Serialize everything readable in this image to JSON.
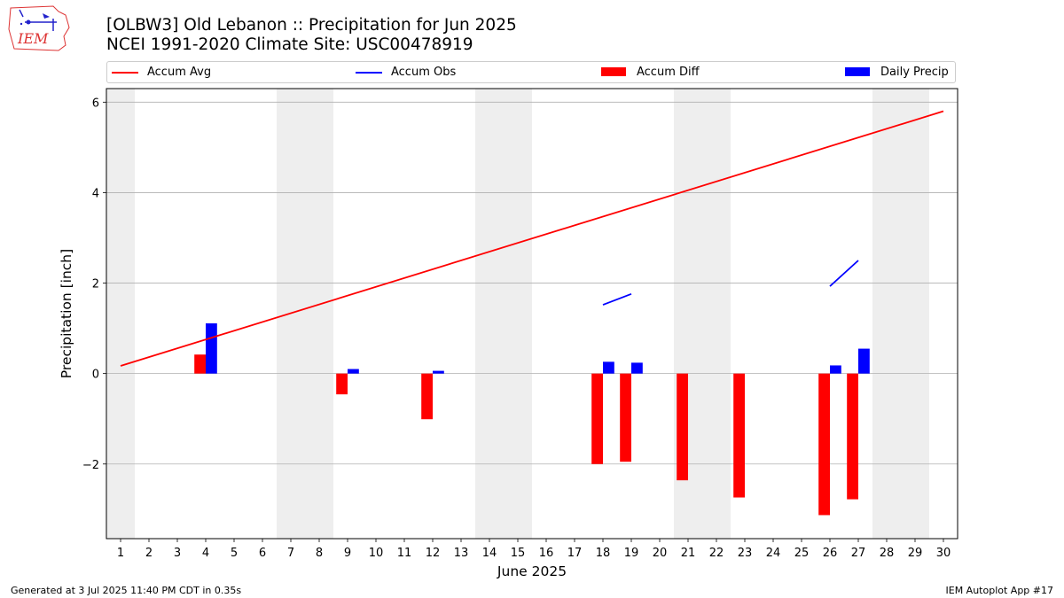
{
  "header": {
    "title_line1": "[OLBW3] Old Lebanon :: Precipitation for Jun 2025",
    "title_line2": "NCEI 1991-2020 Climate Site: USC00478919",
    "logo_text": "IEM"
  },
  "legend": {
    "items": [
      {
        "label": "Accum Avg",
        "kind": "line",
        "color": "#ff0000"
      },
      {
        "label": "Accum Obs",
        "kind": "line",
        "color": "#0000ff"
      },
      {
        "label": "Accum Diff",
        "kind": "bar",
        "color": "#ff0000"
      },
      {
        "label": "Daily Precip",
        "kind": "bar",
        "color": "#0000ff"
      }
    ]
  },
  "footer": {
    "generated": "Generated at 3 Jul 2025 11:40 PM CDT in 0.35s",
    "app": "IEM Autoplot App #17"
  },
  "chart_data": {
    "type": "bar",
    "xlabel": "June 2025",
    "ylabel": "Precipitation [inch]",
    "xlim": [
      0.5,
      30.5
    ],
    "ylim": [
      -3.65,
      6.3
    ],
    "x_ticks": [
      1,
      2,
      3,
      4,
      5,
      6,
      7,
      8,
      9,
      10,
      11,
      12,
      13,
      14,
      15,
      16,
      17,
      18,
      19,
      20,
      21,
      22,
      23,
      24,
      25,
      26,
      27,
      28,
      29,
      30
    ],
    "y_ticks": [
      -2,
      0,
      2,
      4,
      6
    ],
    "y_tick_labels": [
      "−2",
      "0",
      "2",
      "4",
      "6"
    ],
    "grid": "horizontal",
    "legend_position": "top",
    "weekend_shading": [
      [
        0.5,
        1.5
      ],
      [
        6.5,
        8.5
      ],
      [
        13.5,
        15.5
      ],
      [
        20.5,
        22.5
      ],
      [
        27.5,
        29.5
      ]
    ],
    "accum_avg": {
      "name": "Accum Avg",
      "color": "#ff0000",
      "x": [
        1,
        30
      ],
      "y": [
        0.17,
        5.8
      ]
    },
    "accum_obs": {
      "name": "Accum Obs",
      "color": "#0000ff",
      "segments": [
        {
          "x": [
            18,
            19
          ],
          "y": [
            1.52,
            1.76
          ]
        },
        {
          "x": [
            26,
            27
          ],
          "y": [
            1.93,
            2.5
          ]
        }
      ]
    },
    "accum_diff": {
      "name": "Accum Diff",
      "color": "#ff0000",
      "x": [
        4,
        9,
        12,
        18,
        19,
        21,
        23,
        26,
        27
      ],
      "values": [
        0.42,
        -0.46,
        -1.01,
        -2.0,
        -1.95,
        -2.36,
        -2.74,
        -3.13,
        -2.78
      ]
    },
    "daily_precip": {
      "name": "Daily Precip",
      "color": "#0000ff",
      "x": [
        4,
        9,
        12,
        18,
        19,
        26,
        27
      ],
      "values": [
        1.11,
        0.1,
        0.06,
        0.26,
        0.24,
        0.18,
        0.55
      ]
    }
  }
}
